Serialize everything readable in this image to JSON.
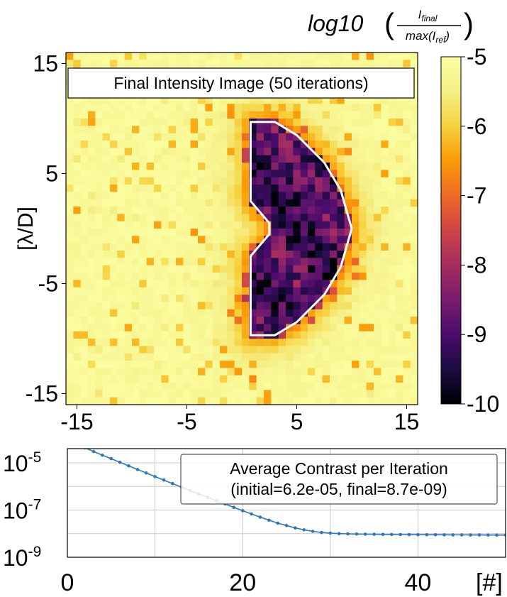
{
  "chart_data": [
    {
      "type": "heatmap",
      "title": "Final Intensity Image (50 iterations)",
      "ylabel": "[λ/D]",
      "xlabel": "",
      "xlim": [
        -16,
        16
      ],
      "ylim": [
        -16,
        16
      ],
      "xticks": [
        -15,
        -5,
        5,
        15
      ],
      "yticks": [
        -15,
        -5,
        5,
        15
      ],
      "xtick_labels": [
        "-15",
        "-5",
        "5",
        "15"
      ],
      "ytick_labels": [
        "-15",
        "-5",
        "5",
        "15"
      ],
      "colorbar": {
        "label_main": "log10",
        "label_numerator": "I_final",
        "label_denominator": "max(I_ref)",
        "range": [
          -10,
          -5
        ],
        "ticks": [
          -5,
          -6,
          -7,
          -8,
          -9,
          -10
        ],
        "tick_labels": [
          "-5",
          "-6",
          "-7",
          "-8",
          "-9",
          "-10"
        ],
        "colormap": "inferno"
      },
      "dark_hole": {
        "shape": "D-shaped region (right side)",
        "boundary_color": "#ffffff",
        "boundary": [
          [
            0.8,
            9.7
          ],
          [
            3.0,
            9.7
          ],
          [
            5.0,
            8.5
          ],
          [
            7.5,
            6.0
          ],
          [
            9.0,
            3.5
          ],
          [
            10.0,
            0.0
          ],
          [
            9.0,
            -3.5
          ],
          [
            7.5,
            -6.0
          ],
          [
            5.0,
            -8.5
          ],
          [
            3.0,
            -9.7
          ],
          [
            0.8,
            -9.7
          ],
          [
            0.8,
            -2.5
          ],
          [
            2.5,
            -0.5
          ],
          [
            2.5,
            0.5
          ],
          [
            0.8,
            2.5
          ]
        ],
        "typical_level": -9.0
      },
      "background_level": -5.3
    },
    {
      "type": "line",
      "legend_title": "Average Contrast per Iteration",
      "legend_subtitle": "(initial=6.2e-05, final=8.7e-09)",
      "xlabel": "[#]",
      "ylabel": "",
      "xlim": [
        0,
        50
      ],
      "ylim_log10": [
        -9,
        -4.4
      ],
      "y_scale": "log",
      "xticks": [
        0,
        20,
        40
      ],
      "xtick_labels": [
        "0",
        "20",
        "40"
      ],
      "yticks_log10": [
        -5,
        -7,
        -9
      ],
      "ytick_labels": [
        {
          "base": "10",
          "exp": "-5"
        },
        {
          "base": "10",
          "exp": "-7"
        },
        {
          "base": "10",
          "exp": "-9"
        }
      ],
      "grid": true,
      "legend_position": "top-right",
      "series_color": "#2e78b7",
      "x": [
        1,
        2,
        3,
        4,
        5,
        6,
        7,
        8,
        9,
        10,
        11,
        12,
        13,
        14,
        15,
        16,
        17,
        18,
        19,
        20,
        21,
        22,
        23,
        24,
        25,
        26,
        27,
        28,
        29,
        30,
        31,
        32,
        33,
        34,
        35,
        36,
        37,
        38,
        39,
        40,
        41,
        42,
        43,
        44,
        45,
        46,
        47,
        48,
        49,
        50
      ],
      "y": [
        6.2e-05,
        4.3e-05,
        3e-05,
        2.1e-05,
        1.5e-05,
        1.05e-05,
        7.4e-06,
        5.2e-06,
        3.7e-06,
        2.6e-06,
        1.85e-06,
        1.32e-06,
        9.4e-07,
        6.7e-07,
        4.8e-07,
        3.45e-07,
        2.5e-07,
        1.8e-07,
        1.3e-07,
        9.4e-08,
        6.8e-08,
        5e-08,
        3.7e-08,
        2.8e-08,
        2.2e-08,
        1.75e-08,
        1.45e-08,
        1.25e-08,
        1.12e-08,
        1.05e-08,
        1e-08,
        9.8e-09,
        9.6e-09,
        9.5e-09,
        9.4e-09,
        9.3e-09,
        9.2e-09,
        9.15e-09,
        9.1e-09,
        9.05e-09,
        9e-09,
        8.95e-09,
        8.9e-09,
        8.88e-09,
        8.85e-09,
        8.8e-09,
        8.78e-09,
        8.75e-09,
        8.72e-09,
        8.7e-09
      ]
    }
  ]
}
